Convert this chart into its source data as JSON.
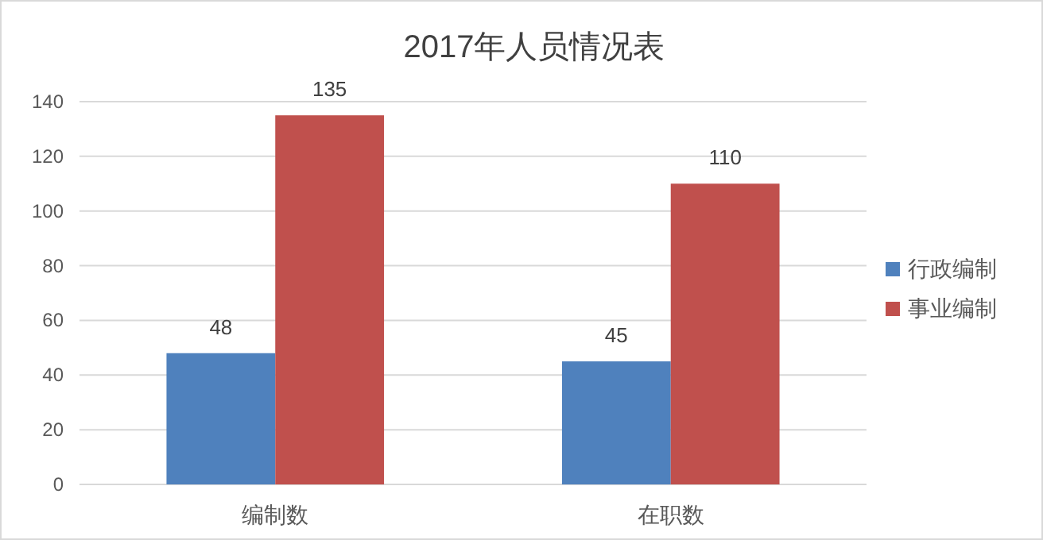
{
  "chart_data": {
    "type": "bar",
    "title": "2017年人员情况表",
    "categories": [
      "编制数",
      "在职数"
    ],
    "series": [
      {
        "name": "行政编制",
        "color": "#4f81bd",
        "values": [
          48,
          45
        ]
      },
      {
        "name": "事业编制",
        "color": "#c0504d",
        "values": [
          135,
          110
        ]
      }
    ],
    "ylim": [
      0,
      140
    ],
    "yticks": [
      0,
      20,
      40,
      60,
      80,
      100,
      120,
      140
    ],
    "grid": "y",
    "legend": "right",
    "data_labels": true
  }
}
